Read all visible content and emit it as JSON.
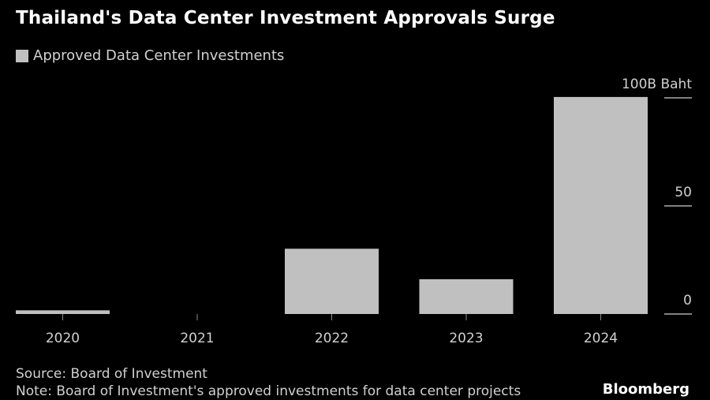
{
  "title": "Thailand's Data Center Investment Approvals Surge",
  "source": "Source: Board of Investment",
  "note": "Note: Board of Investment's approved investments for data center projects",
  "logo": "Bloomberg",
  "colors": {
    "bar": "#c0c0c0",
    "background": "#000000",
    "text": "#d0d0d0"
  },
  "chart_data": {
    "type": "bar",
    "categories": [
      "2020",
      "2021",
      "2022",
      "2023",
      "2024"
    ],
    "series": [
      {
        "name": "Approved Data Center Investments",
        "values": [
          1.7,
          0,
          30.2,
          16.1,
          100.4
        ]
      }
    ],
    "ylim": [
      0,
      100
    ],
    "yticks": [
      0,
      50,
      100
    ],
    "ytick_labels": [
      "0",
      "50",
      "100B Baht"
    ],
    "yaxis_position": "right",
    "grid": false,
    "legend": "top-left"
  }
}
